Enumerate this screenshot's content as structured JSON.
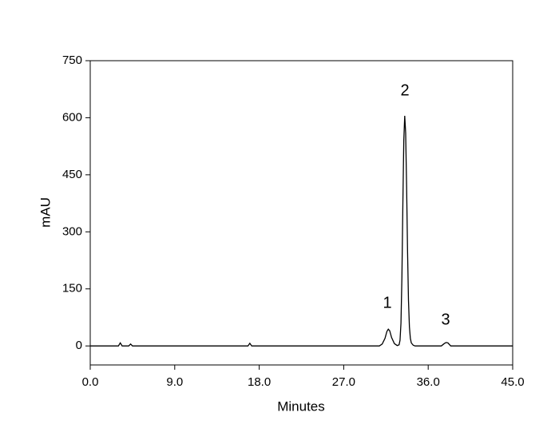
{
  "chart_data": {
    "type": "line",
    "x_label": "Minutes",
    "y_label": "mAU",
    "x": [
      0,
      3.0,
      3.2,
      3.4,
      4.1,
      4.3,
      4.5,
      16.8,
      17.0,
      17.2,
      30.8,
      31.1,
      31.4,
      31.6,
      31.75,
      31.9,
      32.1,
      32.4,
      32.7,
      32.9,
      33.0,
      33.1,
      33.2,
      33.3,
      33.4,
      33.5,
      33.6,
      33.7,
      33.8,
      33.9,
      34.0,
      34.1,
      34.2,
      34.4,
      34.6,
      37.4,
      37.7,
      37.9,
      38.1,
      38.4,
      45.0
    ],
    "series": [
      {
        "color": "#000000",
        "values": [
          0,
          0,
          8,
          0,
          0,
          5,
          0,
          0,
          7,
          0,
          0,
          5,
          20,
          38,
          44,
          40,
          22,
          6,
          1,
          3,
          15,
          60,
          180,
          370,
          540,
          605,
          560,
          420,
          250,
          120,
          50,
          20,
          8,
          2,
          0,
          0,
          6,
          9,
          8,
          0,
          0
        ]
      }
    ],
    "annotations": [
      "1",
      "2",
      "3"
    ],
    "xlim": [
      0,
      45
    ],
    "xticks": [
      {
        "value": 0,
        "label": "0.0"
      },
      {
        "value": 9,
        "label": "9.0"
      },
      {
        "value": 18,
        "label": "18.0"
      },
      {
        "value": 27,
        "label": "27.0"
      },
      {
        "value": 36,
        "label": "36.0"
      },
      {
        "value": 45,
        "label": "45.0"
      }
    ],
    "ylim": [
      -50,
      750
    ],
    "yticks": [
      0,
      150,
      300,
      450,
      600,
      750
    ]
  }
}
